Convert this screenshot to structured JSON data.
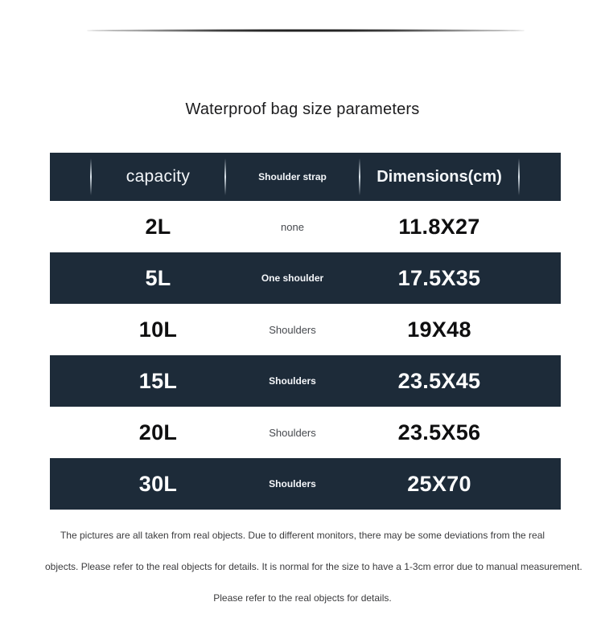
{
  "title": "Waterproof bag size parameters",
  "table": {
    "columns": [
      {
        "label": "capacity"
      },
      {
        "label": "Shoulder strap"
      },
      {
        "label": "Dimensions(cm)"
      }
    ],
    "rows": [
      {
        "capacity": "2L",
        "strap": "none",
        "dimensions": "11.8X27",
        "variant": "light"
      },
      {
        "capacity": "5L",
        "strap": "One shoulder",
        "dimensions": "17.5X35",
        "variant": "dark"
      },
      {
        "capacity": "10L",
        "strap": "Shoulders",
        "dimensions": "19X48",
        "variant": "light"
      },
      {
        "capacity": "15L",
        "strap": "Shoulders",
        "dimensions": "23.5X45",
        "variant": "dark"
      },
      {
        "capacity": "20L",
        "strap": "Shoulders",
        "dimensions": "23.5X56",
        "variant": "light"
      },
      {
        "capacity": "30L",
        "strap": "Shoulders",
        "dimensions": "25X70",
        "variant": "dark"
      }
    ]
  },
  "footer": {
    "lines": [
      "The pictures are all taken from real objects. Due to different monitors, there may be some deviations from the real",
      "objects. Please refer to the real objects for details. It is normal for the size to have a 1-3cm error due to manual measurement.",
      "Please refer to the real objects for details."
    ]
  },
  "colors": {
    "table_dark_bg": "#1d2b39",
    "page_bg": "#ffffff"
  }
}
